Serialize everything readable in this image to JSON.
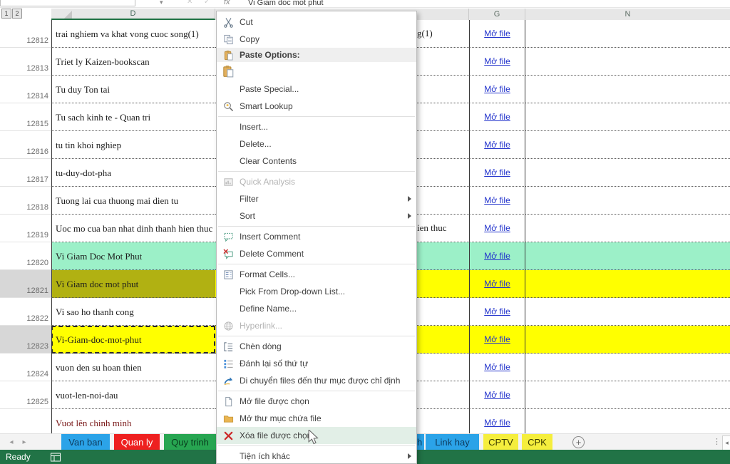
{
  "formula_bar": {
    "value": "Vi Giam doc mot phut"
  },
  "outline": {
    "level1": "1",
    "level2": "2"
  },
  "columns": {
    "d": "D",
    "g": "G",
    "n": "N"
  },
  "colors": {
    "excel_green": "#217346",
    "hyperlink": "#2233cc",
    "row_green": "#9cf0c8",
    "row_yellow": "#ffff00",
    "row_olive": "#b1b112",
    "menu_highlight": "#e2efe7",
    "partial_row_text": "#7a1a1a"
  },
  "rows": [
    {
      "num": "12812",
      "d": "trai nghiem va khat vong cuoc song(1)",
      "f_tail": "g(1)",
      "g": "Mở file",
      "fill": "none"
    },
    {
      "num": "12813",
      "d": "Triet ly Kaizen-bookscan",
      "g": "Mở file",
      "fill": "none"
    },
    {
      "num": "12814",
      "d": "Tu duy Ton tai",
      "g": "Mở file",
      "fill": "none"
    },
    {
      "num": "12815",
      "d": "Tu sach kinh te - Quan tri",
      "g": "Mở file",
      "fill": "none"
    },
    {
      "num": "12816",
      "d": "tu tin khoi nghiep",
      "g": "Mở file",
      "fill": "none"
    },
    {
      "num": "12817",
      "d": "tu-duy-dot-pha",
      "g": "Mở file",
      "fill": "none"
    },
    {
      "num": "12818",
      "d": "Tuong lai cua thuong mai dien tu",
      "g": "Mở file",
      "fill": "none"
    },
    {
      "num": "12819",
      "d": "Uoc mo cua ban nhat dinh thanh hien thuc",
      "f_tail": "ien thuc",
      "g": "Mở file",
      "fill": "none"
    },
    {
      "num": "12820",
      "d": "Vi Giam Doc Mot Phut",
      "g": "Mở file",
      "fill": "green"
    },
    {
      "num": "12821",
      "d": "Vi Giam doc mot phut",
      "g": "Mở file",
      "fill": "yellow",
      "d_fill": "olive",
      "header_selected": true
    },
    {
      "num": "12822",
      "d": "Vi sao ho thanh cong",
      "g": "Mở file",
      "fill": "none"
    },
    {
      "num": "12823",
      "d": "Vi-Giam-doc-mot-phut",
      "g": "Mở file",
      "fill": "yellow",
      "active_cell": true,
      "header_selected": true
    },
    {
      "num": "12824",
      "d": "vuon den su hoan thien",
      "g": "Mở file",
      "fill": "none"
    },
    {
      "num": "12825",
      "d": "vuot-len-noi-dau",
      "g": "Mở file",
      "fill": "none"
    },
    {
      "num": "",
      "d": "Vuot lên chinh minh",
      "g": "Mở file",
      "fill": "none",
      "partial": true
    }
  ],
  "context_menu": [
    {
      "label": "Cut",
      "icon": "scissors"
    },
    {
      "label": "Copy",
      "icon": "copy"
    },
    {
      "label": "Paste Options:",
      "icon": "clipboard",
      "band": true
    },
    {
      "label": "",
      "icon": "paste-option",
      "pbtn": true
    },
    {
      "label": "Paste Special...",
      "icon": ""
    },
    {
      "label": "Smart Lookup",
      "icon": "smart-lookup"
    },
    {
      "sep": true
    },
    {
      "label": "Insert...",
      "icon": ""
    },
    {
      "label": "Delete...",
      "icon": ""
    },
    {
      "label": "Clear Contents",
      "icon": ""
    },
    {
      "sep": true
    },
    {
      "label": "Quick Analysis",
      "icon": "quick-analysis",
      "disabled": true
    },
    {
      "label": "Filter",
      "icon": "",
      "submenu": true
    },
    {
      "label": "Sort",
      "icon": "",
      "submenu": true
    },
    {
      "sep": true
    },
    {
      "label": "Insert Comment",
      "icon": "insert-comment"
    },
    {
      "label": "Delete Comment",
      "icon": "delete-comment"
    },
    {
      "sep": true
    },
    {
      "label": "Format Cells...",
      "icon": "format-cells"
    },
    {
      "label": "Pick From Drop-down List...",
      "icon": ""
    },
    {
      "label": "Define Name...",
      "icon": ""
    },
    {
      "label": "Hyperlink...",
      "icon": "hyperlink",
      "disabled": true
    },
    {
      "sep": true
    },
    {
      "label": "Chèn dòng",
      "icon": "insert-row"
    },
    {
      "label": "Đánh lại số thứ tự",
      "icon": "numbered-list"
    },
    {
      "label": "Di chuyển files đến thư mục được chỉ định",
      "icon": "move-arrow"
    },
    {
      "sep": true
    },
    {
      "label": "Mở file được chọn",
      "icon": "file"
    },
    {
      "label": "Mở thư mục chứa file",
      "icon": "folder"
    },
    {
      "label": "Xóa file được chọn",
      "icon": "red-x",
      "highlight": true
    },
    {
      "sep": true
    },
    {
      "label": "Tiện ích khác",
      "icon": "",
      "submenu": true
    }
  ],
  "sheet_tabs": [
    {
      "label": "Van ban",
      "bg": "#2ba3e8",
      "fg": "#0d3a5c"
    },
    {
      "label": "Quan ly",
      "bg": "#ee2020",
      "fg": "#ffffff"
    },
    {
      "label": "Quy trinh",
      "bg": "#27a551",
      "fg": "#083d1e"
    },
    {
      "label": "h",
      "bg": "#2ba3e8",
      "fg": "#0d3a5c",
      "partial": true
    },
    {
      "label": "Link hay",
      "bg": "#2ba3e8",
      "fg": "#0d3a5c"
    },
    {
      "label": "CPTV",
      "bg": "#f5ee3d",
      "fg": "#3c3c00"
    },
    {
      "label": "CPK",
      "bg": "#f5ee3d",
      "fg": "#3c3c00"
    }
  ],
  "status_bar": {
    "ready_label": "Ready"
  }
}
